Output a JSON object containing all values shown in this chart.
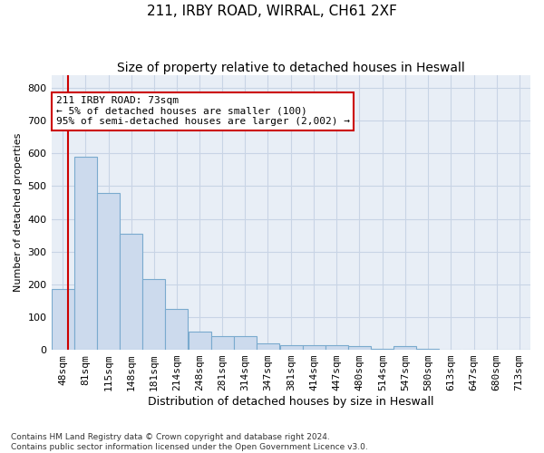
{
  "title1": "211, IRBY ROAD, WIRRAL, CH61 2XF",
  "title2": "Size of property relative to detached houses in Heswall",
  "xlabel": "Distribution of detached houses by size in Heswall",
  "ylabel": "Number of detached properties",
  "footnote1": "Contains HM Land Registry data © Crown copyright and database right 2024.",
  "footnote2": "Contains public sector information licensed under the Open Government Licence v3.0.",
  "bar_edges": [
    48,
    81,
    115,
    148,
    181,
    214,
    248,
    281,
    314,
    347,
    381,
    414,
    447,
    480,
    514,
    547,
    580,
    613,
    647,
    680,
    713
  ],
  "bar_heights": [
    185,
    590,
    480,
    355,
    215,
    125,
    55,
    42,
    42,
    20,
    15,
    14,
    13,
    10,
    3,
    10,
    3,
    0,
    0,
    0,
    0
  ],
  "bar_color": "#ccdaed",
  "bar_edge_color": "#7aaace",
  "grid_color": "#c8d4e5",
  "background_color": "#e8eef6",
  "vline_x": 73,
  "vline_color": "#cc0000",
  "annotation_text": "211 IRBY ROAD: 73sqm\n← 5% of detached houses are smaller (100)\n95% of semi-detached houses are larger (2,002) →",
  "annotation_box_color": "#ffffff",
  "annotation_border_color": "#cc0000",
  "ylim": [
    0,
    840
  ],
  "yticks": [
    0,
    100,
    200,
    300,
    400,
    500,
    600,
    700,
    800
  ],
  "tick_label_fontsize": 8,
  "title_fontsize1": 11,
  "title_fontsize2": 10,
  "xlabel_fontsize": 9,
  "ylabel_fontsize": 8,
  "annot_fontsize": 8
}
